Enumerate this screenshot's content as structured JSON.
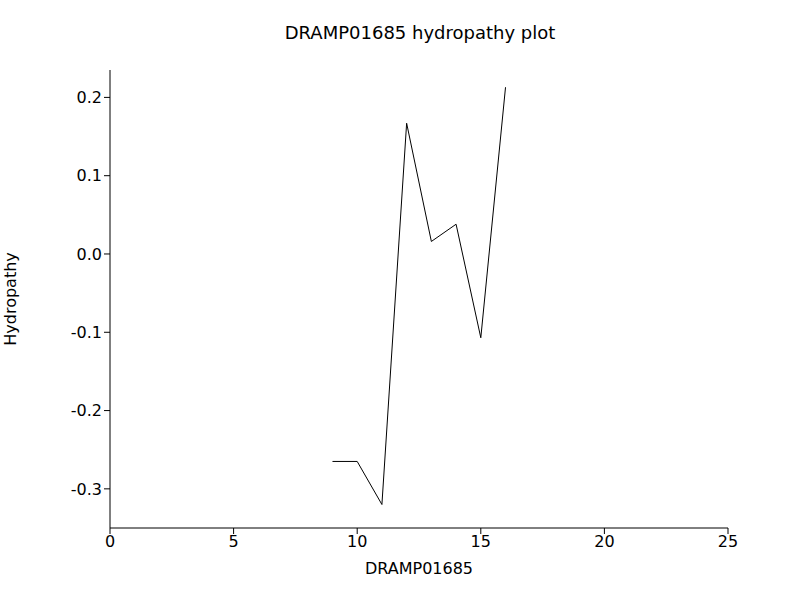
{
  "chart_data": {
    "type": "line",
    "title": "DRAMP01685 hydropathy plot",
    "x_label": "DRAMP01685",
    "y_label": "Hydropathy",
    "x": [
      9,
      10,
      11,
      12,
      13,
      14,
      15,
      16
    ],
    "values": [
      -0.265,
      -0.265,
      -0.32,
      0.167,
      0.016,
      0.038,
      -0.107,
      0.213
    ],
    "color": "#000000",
    "xlim": [
      0,
      25
    ],
    "xticks": [
      0,
      5,
      10,
      15,
      20,
      25
    ],
    "ylim": [
      -0.35,
      0.235
    ],
    "yticks": [
      -0.3,
      -0.2,
      -0.1,
      {
        "value": 0,
        "label": "0.0"
      },
      0.1,
      0.2
    ],
    "grid": false
  }
}
